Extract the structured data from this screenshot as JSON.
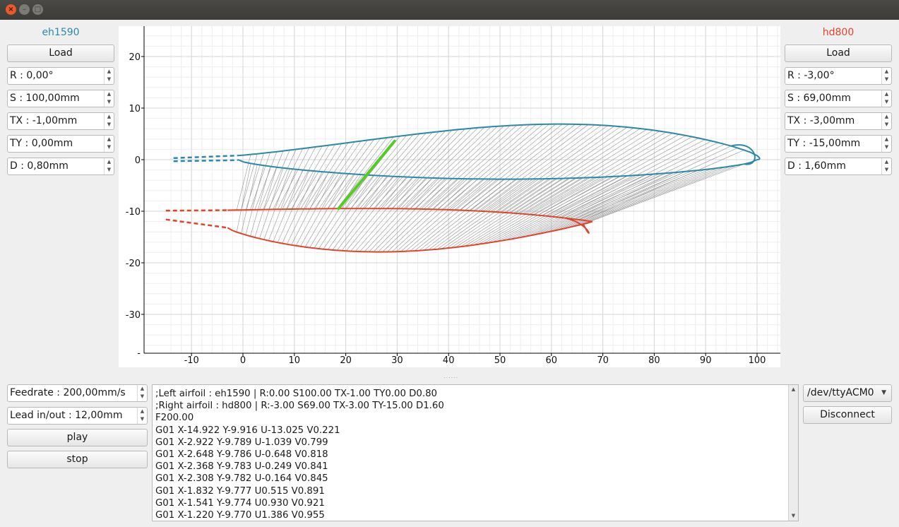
{
  "window": {
    "close_glyph": "×",
    "min_glyph": "–",
    "max_glyph": "□"
  },
  "left_panel": {
    "title": "eh1590",
    "title_color": "#2d88a8",
    "load_label": "Load",
    "rotation": "R : 0,00°",
    "scale": "S : 100,00mm",
    "tx": "TX : -1,00mm",
    "ty": "TY : 0,00mm",
    "d": "D : 0,80mm"
  },
  "right_panel": {
    "title": "hd800",
    "title_color": "#e0452c",
    "load_label": "Load",
    "rotation": "R : -3,00°",
    "scale": "S : 69,00mm",
    "tx": "TX : -3,00mm",
    "ty": "TY : -15,00mm",
    "d": "D : 1,60mm"
  },
  "spin_arrows": {
    "up": "▲",
    "down": "▼"
  },
  "plot": {
    "x_ticks": [
      "-10",
      "0",
      "10",
      "20",
      "30",
      "40",
      "50",
      "60",
      "70",
      "80",
      "90",
      "100"
    ],
    "y_ticks": [
      "20",
      "10",
      "0",
      "-10",
      "-20",
      "-30",
      "-"
    ],
    "left_color": "#2d88a8",
    "right_color": "#e0452c",
    "link_color": "#55cc22",
    "grid_color": "#d6d6d6",
    "subgrid_color": "#eeeeee",
    "hatch_color": "#8a8a8a"
  },
  "splitter_glyph": "......",
  "controls": {
    "feedrate": "Feedrate : 200,00mm/s",
    "lead": "Lead in/out : 12,00mm",
    "play_label": "play",
    "stop_label": "stop",
    "port": "/dev/ttyACM0",
    "port_caret": "▼",
    "disconnect_label": "Disconnect"
  },
  "console": {
    "lines": [
      ";Left  airfoil : eh1590 | R:0.00 S100.00 TX-1.00 TY0.00 D0.80",
      ";Right airfoil : hd800 | R:-3.00 S69.00 TX-3.00 TY-15.00 D1.60",
      "F200.00",
      "G01 X-14.922 Y-9.916 U-13.025 V0.221",
      "G01 X-2.922 Y-9.789 U-1.039 V0.799",
      "G01 X-2.648 Y-9.786 U-0.648 V0.818",
      "G01 X-2.368 Y-9.783 U-0.249 V0.841",
      "G01 X-2.308 Y-9.782 U-0.164 V0.845",
      "G01 X-1.832 Y-9.777 U0.515 V0.891",
      "G01 X-1.541 Y-9.774 U0.930 V0.921",
      "G01 X-1.220 Y-9.770 U1.386 V0.955"
    ]
  }
}
